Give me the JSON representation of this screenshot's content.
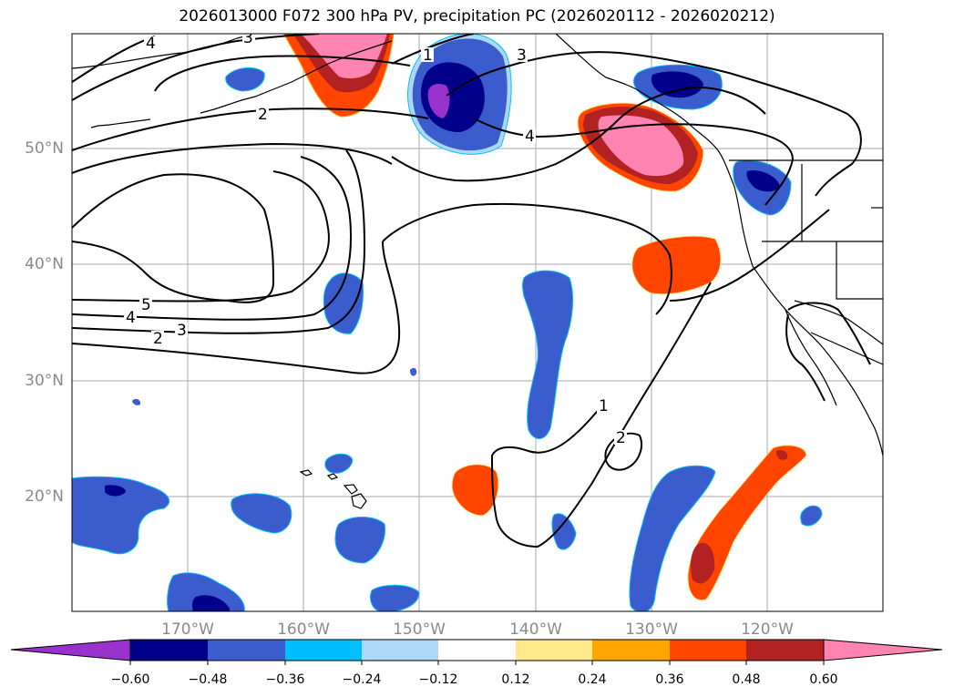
{
  "title": "2026013000 F072 300 hPa PV, precipitation PC (2026020112 - 2026020212)",
  "map": {
    "longitude_labels": [
      "170°W",
      "160°W",
      "150°W",
      "140°W",
      "130°W",
      "120°W"
    ],
    "latitude_labels": [
      "50°N",
      "40°N",
      "30°N",
      "20°N"
    ],
    "pv_contour_labels": [
      "4",
      "3",
      "1",
      "3",
      "2",
      "4",
      "5",
      "4",
      "3",
      "2",
      "1",
      "2"
    ]
  },
  "colorbar": {
    "ticks": [
      "−0.60",
      "−0.48",
      "−0.36",
      "−0.24",
      "−0.12",
      "0.12",
      "0.24",
      "0.36",
      "0.48",
      "0.60"
    ],
    "colors": [
      "#9932cc",
      "#00008b",
      "#3b5ccc",
      "#00bfff",
      "#add8f5",
      "#ffffff",
      "#ffe98a",
      "#ffa500",
      "#ff4500",
      "#b22222",
      "#ff85b0"
    ]
  },
  "colors": {
    "neg_light": "#add8f5",
    "neg_cyan": "#00bfff",
    "neg_mid": "#3b5ccc",
    "neg_dark": "#00008b",
    "neg_purple": "#9932cc",
    "pos_yellow": "#ffe98a",
    "pos_orange": "#ffa500",
    "pos_red": "#ff4500",
    "pos_darkred": "#b22222",
    "pos_pink": "#ff85b0"
  }
}
